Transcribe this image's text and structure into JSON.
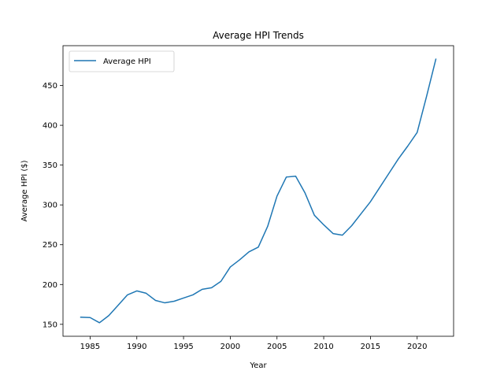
{
  "chart_data": {
    "type": "line",
    "title": "Average HPI Trends",
    "xlabel": "Year",
    "ylabel": "Average HPI ($)",
    "xlim": [
      1982.1,
      2023.9
    ],
    "ylim": [
      135.0,
      500.0
    ],
    "xticks": [
      1985,
      1990,
      1995,
      2000,
      2005,
      2010,
      2015,
      2020
    ],
    "yticks": [
      150,
      200,
      250,
      300,
      350,
      400,
      450
    ],
    "grid": false,
    "legend": {
      "placement": "top-left"
    },
    "line_color": "#1f77b4",
    "series": [
      {
        "name": "Average HPI",
        "x": [
          1984,
          1985,
          1986,
          1987,
          1988,
          1989,
          1990,
          1991,
          1992,
          1993,
          1994,
          1995,
          1996,
          1997,
          1998,
          1999,
          2000,
          2001,
          2002,
          2003,
          2004,
          2005,
          2006,
          2007,
          2008,
          2009,
          2010,
          2011,
          2012,
          2013,
          2014,
          2015,
          2016,
          2017,
          2018,
          2019,
          2020,
          2021,
          2022
        ],
        "y": [
          159,
          158.5,
          152,
          161,
          174,
          187,
          192,
          189,
          180,
          177,
          179,
          183,
          187,
          194,
          196,
          204,
          222,
          231,
          241,
          247,
          273,
          311,
          335,
          336,
          315,
          287,
          275,
          264,
          262,
          274,
          289,
          304,
          322,
          340,
          358,
          374,
          391,
          436,
          483
        ]
      }
    ]
  }
}
